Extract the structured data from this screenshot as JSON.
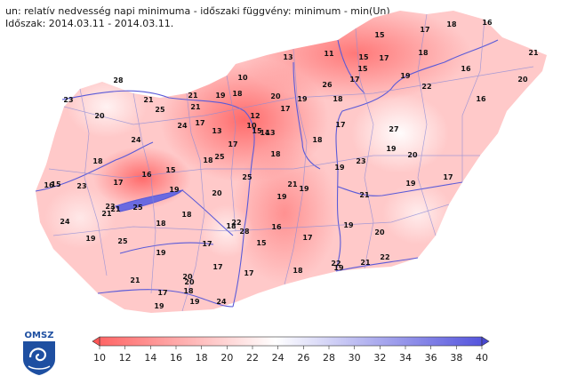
{
  "header": {
    "line1": "un: relatív nedvesség napi minimuma - időszaki függvény: minimum - min(Un)",
    "line2": "Időszak: 2014.03.11 - 2014.03.11."
  },
  "logo": {
    "text": "OMSZ",
    "icon": "omsz-logo-icon"
  },
  "colorbar": {
    "ticks": [
      "10",
      "12",
      "14",
      "16",
      "18",
      "20",
      "22",
      "24",
      "26",
      "28",
      "30",
      "32",
      "34",
      "36",
      "38",
      "40"
    ],
    "low_color": "#ff6666",
    "mid_color": "#ffffff",
    "high_color": "#5555dd"
  },
  "station_values": [
    "15",
    "17",
    "18",
    "16",
    "21",
    "13",
    "11",
    "15",
    "17",
    "15",
    "17",
    "18",
    "28",
    "10",
    "19",
    "16",
    "20",
    "26",
    "21",
    "23",
    "18",
    "20",
    "22",
    "19",
    "21",
    "25",
    "21",
    "12",
    "17",
    "16",
    "10",
    "15",
    "14",
    "13",
    "13",
    "17",
    "20",
    "18",
    "19",
    "17",
    "24",
    "17",
    "24",
    "18",
    "18",
    "27",
    "18",
    "15",
    "25",
    "16",
    "17",
    "23",
    "19",
    "20",
    "19",
    "16",
    "19",
    "20",
    "23",
    "15",
    "21",
    "21",
    "17",
    "19",
    "19",
    "25",
    "19",
    "18",
    "25",
    "20",
    "21",
    "23",
    "22",
    "21",
    "18",
    "22",
    "18",
    "19",
    "28",
    "16",
    "17",
    "24",
    "19",
    "25",
    "15",
    "18",
    "20",
    "19",
    "17",
    "17",
    "21",
    "20",
    "22",
    "21",
    "17",
    "18",
    "18",
    "17",
    "19",
    "19",
    "24",
    "19"
  ]
}
